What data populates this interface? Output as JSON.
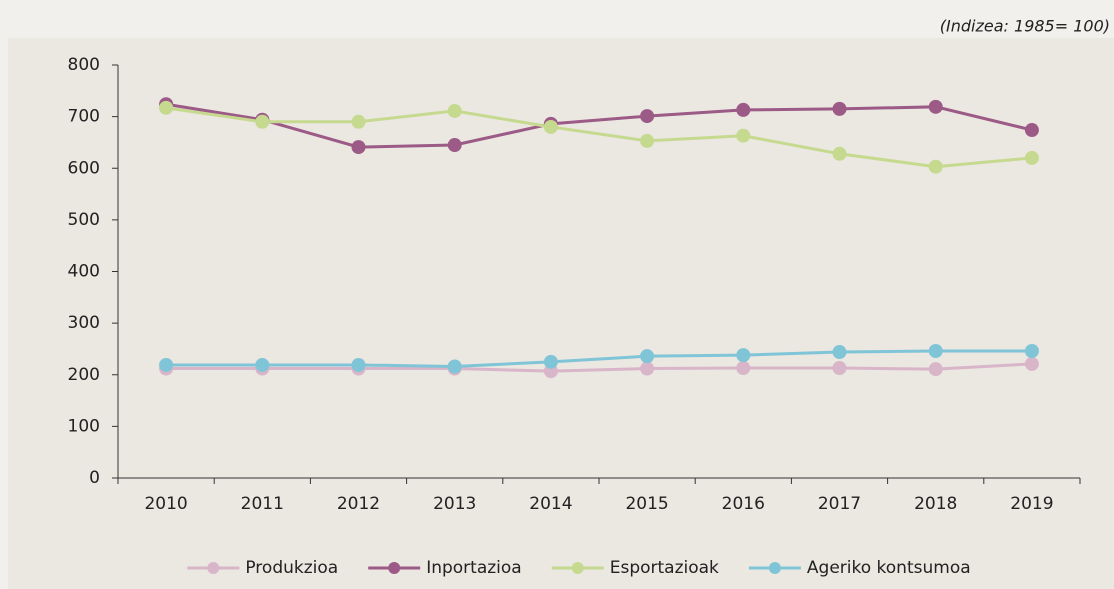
{
  "chart_data": {
    "type": "line",
    "subtitle": "(Indizea: 1985= 100)",
    "categories": [
      "2010",
      "2011",
      "2012",
      "2013",
      "2014",
      "2015",
      "2016",
      "2017",
      "2018",
      "2019"
    ],
    "series": [
      {
        "name": "Produkzioa",
        "color": "#d9b5c9",
        "values": [
          212,
          212,
          212,
          212,
          207,
          212,
          213,
          213,
          211,
          221
        ]
      },
      {
        "name": "Inportazioa",
        "color": "#9c5a86",
        "values": [
          724,
          694,
          641,
          645,
          686,
          701,
          713,
          715,
          719,
          674
        ]
      },
      {
        "name": "Esportazioak",
        "color": "#c6da8f",
        "values": [
          717,
          690,
          690,
          711,
          680,
          653,
          663,
          628,
          603,
          620
        ]
      },
      {
        "name": "Ageriko kontsumoa",
        "color": "#7fc5d7",
        "values": [
          219,
          219,
          219,
          216,
          225,
          236,
          238,
          244,
          246,
          246
        ]
      }
    ],
    "ylim": [
      0,
      800
    ],
    "yticks": [
      0,
      100,
      200,
      300,
      400,
      500,
      600,
      700,
      800
    ],
    "grid": false,
    "legend": "bottom"
  }
}
